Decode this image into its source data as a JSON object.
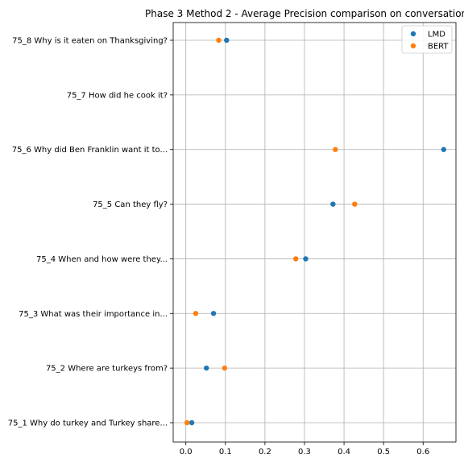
{
  "chart_data": {
    "type": "scatter",
    "title": "Phase 3 Method 2 - Average Precision comparison on conversation 75",
    "xlabel": "",
    "ylabel": "",
    "categories": [
      "75_1 Why do turkey and Turkey share...",
      "75_2 Where are turkeys from?",
      "75_3 What was their importance in...",
      "75_4 When and how were they...",
      "75_5 Can they fly?",
      "75_6 Why did Ben Franklin want it to...",
      "75_7 How did he cook it?",
      "75_8 Why is it eaten on Thanksgiving?"
    ],
    "xlim": [
      -0.032,
      0.683
    ],
    "x_ticks": [
      0.0,
      0.1,
      0.2,
      0.3,
      0.4,
      0.5,
      0.6
    ],
    "x_tick_labels": [
      "0.0",
      "0.1",
      "0.2",
      "0.3",
      "0.4",
      "0.5",
      "0.6"
    ],
    "grid": true,
    "legend_position": "top-right",
    "series": [
      {
        "name": "LMD",
        "color": "#1f77b4",
        "values": [
          0.015,
          0.052,
          0.07,
          0.303,
          0.372,
          0.652,
          null,
          0.103
        ]
      },
      {
        "name": "BERT",
        "color": "#ff7f0e",
        "values": [
          0.003,
          0.098,
          0.025,
          0.278,
          0.427,
          0.378,
          null,
          0.083
        ]
      }
    ]
  }
}
